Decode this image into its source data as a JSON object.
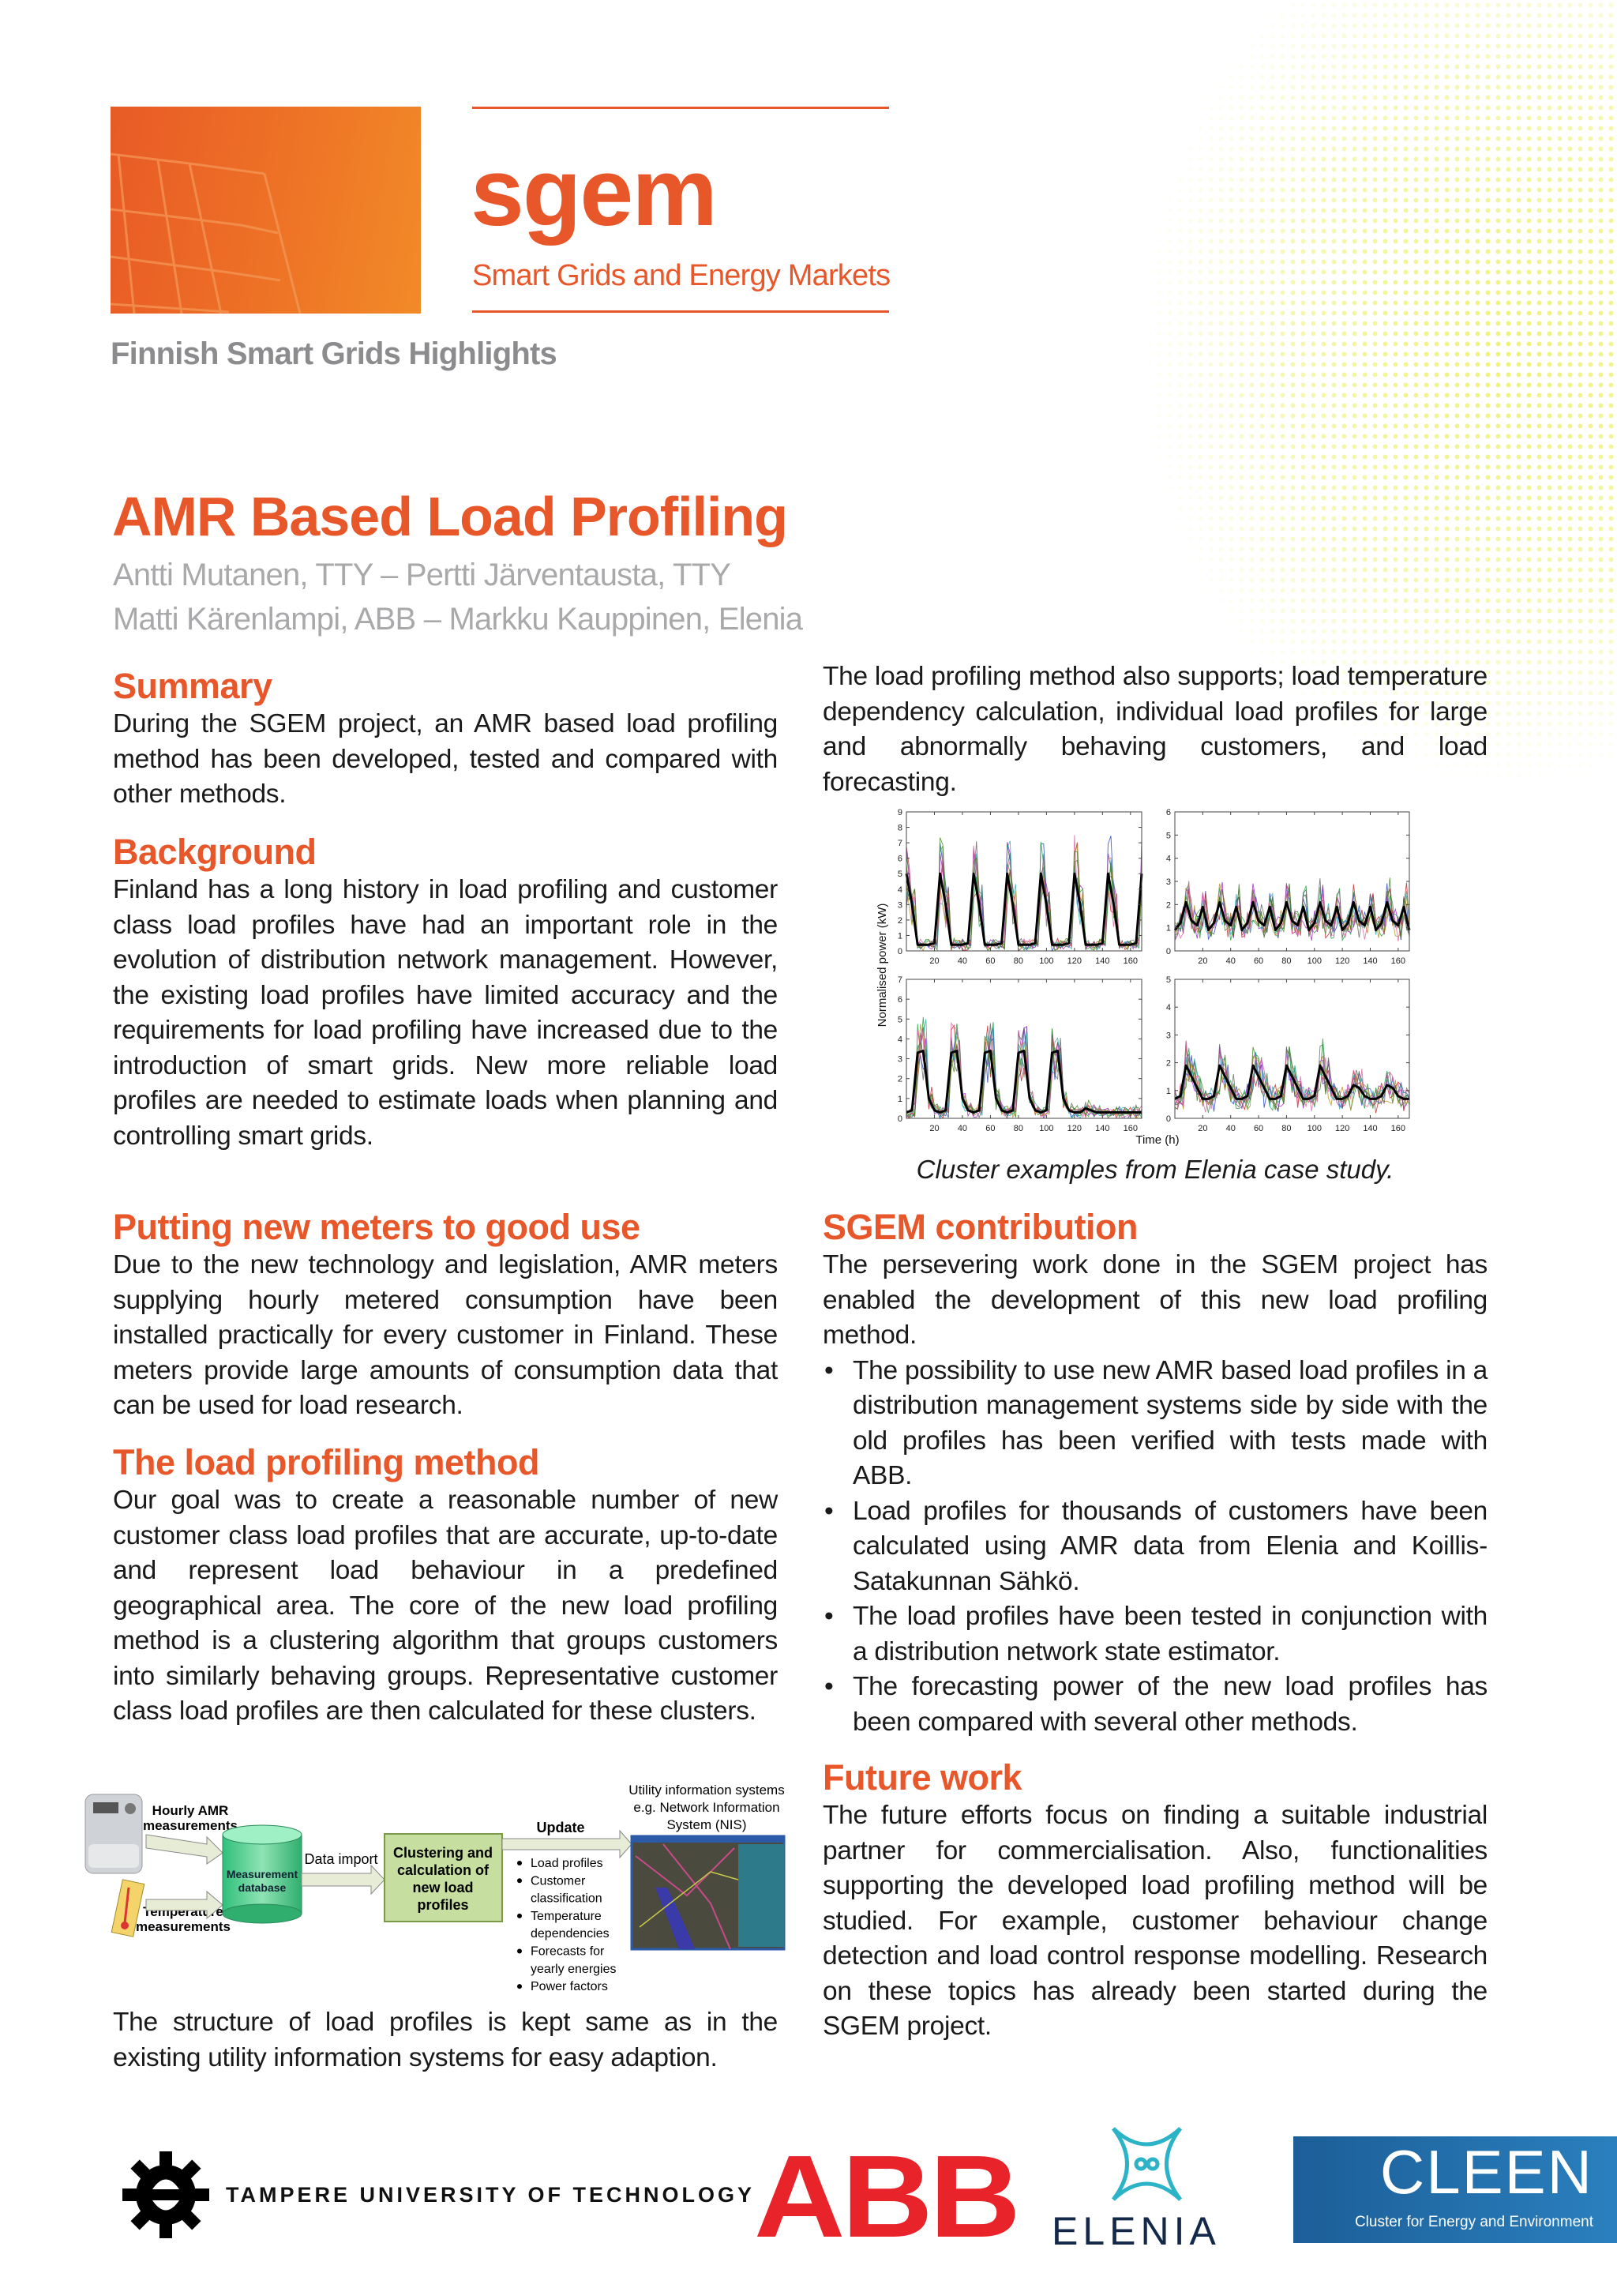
{
  "header": {
    "logo_word": "sgem",
    "logo_subtitle": "Smart Grids and Energy Markets",
    "series_title": "Finnish Smart Grids Highlights",
    "brand_color": "#e8572a"
  },
  "article": {
    "title": "AMR Based Load Profiling",
    "authors": [
      "Antti Mutanen, TTY – Pertti Järventausta, TTY",
      "Matti Kärenlampi, ABB – Markku Kauppinen, Elenia"
    ]
  },
  "sections": {
    "summary": {
      "heading": "Summary",
      "body": "During the SGEM project, an AMR based load profiling method has been developed, tested and compared with other methods."
    },
    "background": {
      "heading": "Background",
      "body": "Finland has a long history in load profiling and customer class load profiles have had an important role in the evolution of distribution network management. However, the existing load profiles have limited accuracy and the requirements for load profiling have increased due to the introduction of smart grids. New more reliable load profiles are needed to estimate loads when planning and controlling smart grids."
    },
    "meters": {
      "heading": "Putting new meters to good use",
      "body": "Due to the new technology and legislation, AMR meters supplying hourly metered consumption have been installed practically for every customer in Finland. These meters provide large amounts of consumption data that can be used for load research."
    },
    "method": {
      "heading": "The load profiling method",
      "body": "Our goal was to create a reasonable number of new customer class load profiles that are accurate, up-to-date and represent load behaviour in a predefined geographical area. The core of the new load profiling method is a clustering algorithm that groups customers into similarly behaving groups. Representative customer class load profiles are then calculated for these clusters."
    },
    "closing": {
      "body": "The structure of load profiles is kept same as in the existing utility information systems for easy adaption."
    },
    "supports": {
      "body": "The load profiling method also supports; load temperature dependency calculation, individual load profiles for large and abnormally behaving customers, and load forecasting."
    },
    "figure_caption": "Cluster examples from Elenia case study.",
    "contribution": {
      "heading": "SGEM contribution",
      "body": "The persevering work done in the SGEM project has enabled the development of this new load profiling method.",
      "bullets": [
        "The possibility to use new AMR based load profiles in a distribution management systems side by side with the old profiles has been verified with tests made with ABB.",
        "Load profiles for thousands of customers have been calculated using AMR data from Elenia and Koillis-Satakunnan Sähkö.",
        "The load profiles have been tested in conjunction with a distribution network state estimator.",
        "The forecasting power of the new load profiles has been compared with several other methods."
      ]
    },
    "future": {
      "heading": "Future work",
      "body": "The future efforts focus on finding a suitable industrial partner for commercialisation. Also, functionalities supporting the developed load profiling method will be studied. For example, customer behaviour change detection and load control response modelling. Research on these topics has already been started during the SGEM project."
    }
  },
  "diagram": {
    "hourly_amr": [
      "Hourly AMR",
      "measurements"
    ],
    "temperature": [
      "Temperature",
      "measurements"
    ],
    "database": [
      "Measurement",
      "database"
    ],
    "data_import": "Data import",
    "process": [
      "Clustering and",
      "calculation of",
      "new load",
      "profiles"
    ],
    "update": "Update",
    "outputs": [
      "Load profiles",
      "Customer",
      "classification",
      "Temperature",
      "dependencies",
      "Forecasts for",
      "yearly energies",
      "Power factors"
    ],
    "output_bullet_rows": [
      true,
      true,
      false,
      true,
      false,
      true,
      false,
      true
    ],
    "target": [
      "Utility information systems",
      "e.g. Network Information",
      "System (NIS)"
    ]
  },
  "chart_data": {
    "type": "line",
    "xlabel": "Time (h)",
    "ylabel": "Normalised power (kW)",
    "xlim": [
      0,
      168
    ],
    "xticks": [
      20,
      40,
      60,
      80,
      100,
      120,
      140,
      160
    ],
    "grid": false,
    "mean_line_color": "#000000",
    "x": [
      0,
      4,
      8,
      12,
      16,
      20,
      24,
      28,
      32,
      36,
      40,
      44,
      48,
      52,
      56,
      60,
      64,
      68,
      72,
      76,
      80,
      84,
      88,
      92,
      96,
      100,
      104,
      108,
      112,
      116,
      120,
      124,
      128,
      132,
      136,
      140,
      144,
      148,
      152,
      156,
      160,
      164,
      168
    ],
    "panels": [
      {
        "ylim": [
          0,
          9
        ],
        "yticks": [
          0,
          1,
          2,
          3,
          4,
          5,
          6,
          7,
          8,
          9
        ],
        "mean_profile": [
          5,
          3,
          0.4,
          0.4,
          0.4,
          0.5,
          5,
          3,
          0.4,
          0.4,
          0.4,
          0.5,
          5,
          3,
          0.4,
          0.4,
          0.4,
          0.5,
          5,
          3,
          0.4,
          0.4,
          0.4,
          0.5,
          5,
          3,
          0.4,
          0.4,
          0.4,
          0.5,
          5,
          3,
          0.4,
          0.4,
          0.4,
          0.5,
          5,
          3,
          0.4,
          0.4,
          0.4,
          0.5,
          5
        ]
      },
      {
        "ylim": [
          0,
          6
        ],
        "yticks": [
          0,
          1,
          2,
          3,
          4,
          5,
          6
        ],
        "mean_profile": [
          0.9,
          1.2,
          2.1,
          1.3,
          1.1,
          1.9,
          0.9,
          1.2,
          2.1,
          1.3,
          1.1,
          1.9,
          0.9,
          1.2,
          2.1,
          1.3,
          1.1,
          1.9,
          0.9,
          1.2,
          2.1,
          1.3,
          1.1,
          1.9,
          0.9,
          1.2,
          2.1,
          1.3,
          1.1,
          1.9,
          0.9,
          1.2,
          2.1,
          1.3,
          1.1,
          1.9,
          0.9,
          1.2,
          2.1,
          1.3,
          1.1,
          1.9,
          0.9
        ]
      },
      {
        "ylim": [
          0,
          7
        ],
        "yticks": [
          0,
          1,
          2,
          3,
          4,
          5,
          6,
          7
        ],
        "mean_profile": [
          0.3,
          0.4,
          3.3,
          3.4,
          1.0,
          0.4,
          0.3,
          0.4,
          3.3,
          3.4,
          1.0,
          0.4,
          0.3,
          0.4,
          3.3,
          3.4,
          1.0,
          0.4,
          0.3,
          0.4,
          3.3,
          3.4,
          1.0,
          0.4,
          0.3,
          0.4,
          3.3,
          3.4,
          1.0,
          0.4,
          0.3,
          0.3,
          0.5,
          0.4,
          0.3,
          0.3,
          0.3,
          0.3,
          0.3,
          0.3,
          0.3,
          0.3,
          0.3
        ]
      },
      {
        "ylim": [
          0,
          5
        ],
        "yticks": [
          0,
          1,
          2,
          3,
          4,
          5
        ],
        "mean_profile": [
          0.7,
          0.8,
          1.9,
          1.5,
          1.1,
          0.7,
          0.7,
          0.8,
          1.9,
          1.5,
          1.1,
          0.7,
          0.7,
          0.8,
          1.9,
          1.5,
          1.1,
          0.7,
          0.7,
          0.8,
          1.9,
          1.5,
          1.1,
          0.7,
          0.7,
          0.8,
          1.9,
          1.5,
          1.1,
          0.7,
          0.7,
          0.8,
          1.2,
          1.1,
          0.8,
          0.7,
          0.7,
          0.8,
          1.2,
          1.1,
          0.8,
          0.7,
          0.7
        ]
      }
    ]
  },
  "footer": {
    "tut": "TAMPERE UNIVERSITY OF TECHNOLOGY",
    "abb": "ABB",
    "elenia": "ELENIA",
    "cleen": "CLEEN",
    "cleen_sub": "Cluster for Energy and Environment"
  }
}
